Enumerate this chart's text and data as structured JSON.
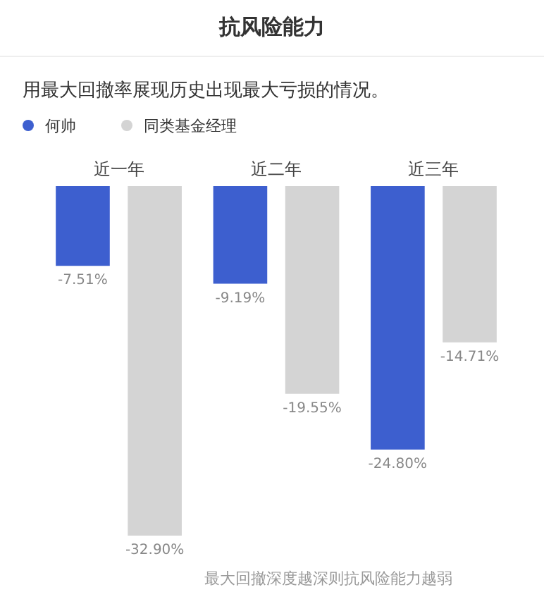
{
  "chart_data": {
    "type": "bar",
    "title": "抗风险能力",
    "subtitle": "用最大回撤率展现历史出现最大亏损的情况。",
    "annotations": [
      "最大回撤深度越深则抗风险能力越弱"
    ],
    "categories": [
      "近一年",
      "近二年",
      "近三年"
    ],
    "legend": "top left",
    "series": [
      {
        "name": "何帅",
        "color": "#3d5fcf",
        "values": [
          -7.51,
          -9.19,
          -24.8
        ],
        "value_labels": [
          "-7.51%",
          "-9.19%",
          "-24.80%"
        ]
      },
      {
        "name": "同类基金经理",
        "color": "#d4d4d4",
        "values": [
          -32.9,
          -19.55,
          -14.71
        ],
        "value_labels": [
          "-32.90%",
          "-19.55%",
          "-14.71%"
        ]
      }
    ]
  }
}
